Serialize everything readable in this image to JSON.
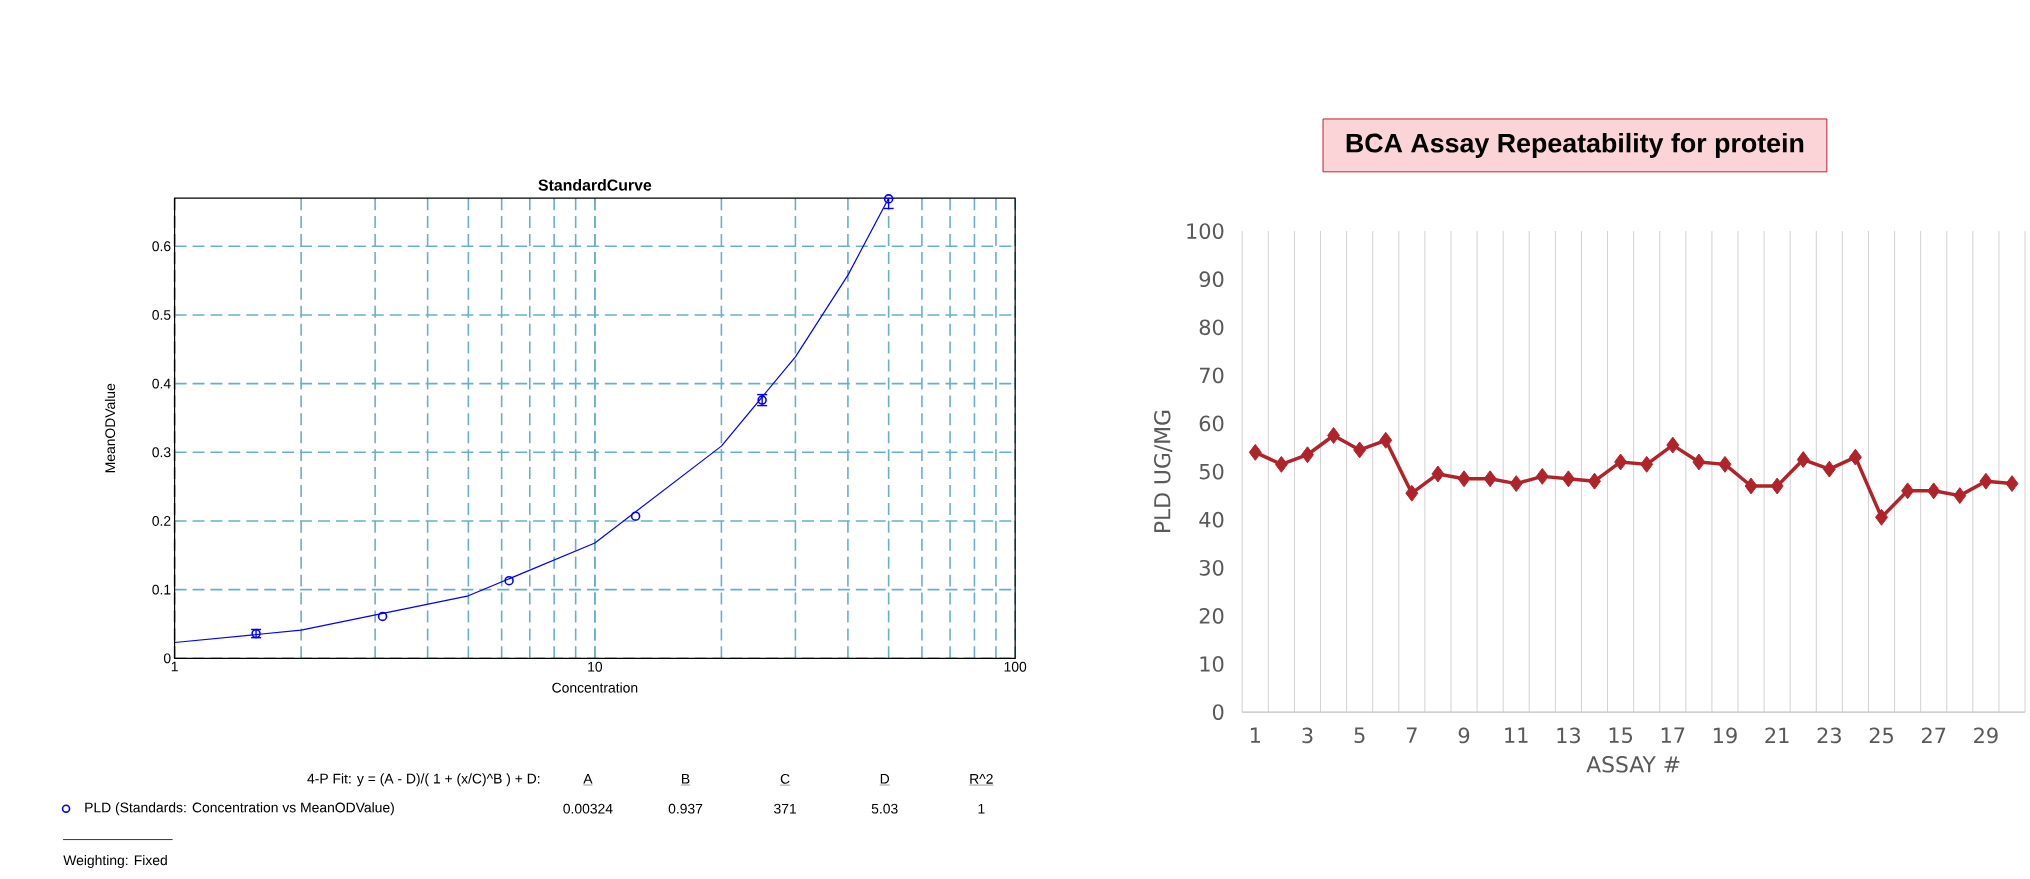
{
  "chart_data": [
    {
      "type": "line",
      "title": "StandardCurve",
      "xlabel": "Concentration",
      "ylabel": "MeanODValue",
      "log": "x",
      "grid": true,
      "legend": "bottom",
      "xlim": [
        1,
        100
      ],
      "xticks": [
        1,
        10,
        100
      ],
      "ylim": [
        0,
        0.67
      ],
      "yticks": [
        0,
        0.1,
        0.2,
        0.3,
        0.4,
        0.5,
        0.6
      ],
      "series": [
        {
          "name": "PLD (Standards: Concentration vs MeanODValue)",
          "type": "scatter",
          "marker": "circle",
          "color": "#0000ff",
          "x": [
            1.5625,
            3.125,
            6.25,
            12.5,
            25,
            50
          ],
          "values": [
            0.036,
            0.061,
            0.113,
            0.207,
            0.376,
            0.669
          ],
          "errors": [
            0.006,
            null,
            null,
            null,
            0.008,
            [
              0.655,
              0.67
            ]
          ]
        },
        {
          "type": "line",
          "marker": "none",
          "color": "#0000ff",
          "x": [
            1,
            2,
            5,
            10,
            20,
            30,
            40,
            50
          ],
          "values": [
            0.023,
            0.041,
            0.091,
            0.168,
            0.309,
            0.439,
            0.558,
            0.67
          ]
        }
      ],
      "annotations": [
        "4-P Fit: y = (A - D)/( 1 + (x/C)^B ) + D:",
        "A",
        "B",
        "C",
        "D",
        "R^2",
        "0.00324",
        "0.937",
        "371",
        "5.03",
        "1",
        "Weighting: Fixed"
      ]
    },
    {
      "type": "line",
      "title": "BCA Assay Repeatability for protein",
      "xlabel": "ASSAY #",
      "ylabel": "PLD UG/MG",
      "grid": "x",
      "marker": "diamond",
      "categories": [
        "1",
        null,
        "3",
        null,
        "5",
        null,
        "7",
        null,
        "9",
        null,
        "11",
        null,
        "13",
        null,
        "15",
        null,
        "17",
        null,
        "19",
        null,
        "21",
        null,
        "23",
        null,
        "25",
        null,
        "27",
        null,
        "29",
        null
      ],
      "ylim": [
        0,
        100
      ],
      "yticks": [
        0,
        10,
        20,
        30,
        40,
        50,
        60,
        70,
        80,
        90,
        100
      ],
      "series": [
        {
          "color": "#b0232a",
          "values": [
            54,
            51.5,
            53.5,
            57.5,
            54.5,
            56.5,
            45.5,
            49.5,
            48.5,
            48.5,
            47.5,
            49,
            48.5,
            48,
            52,
            51.5,
            55.5,
            52,
            51.5,
            47,
            47,
            52.5,
            50.5,
            53,
            40.5,
            46,
            46,
            45,
            48,
            47.5
          ]
        }
      ]
    }
  ]
}
